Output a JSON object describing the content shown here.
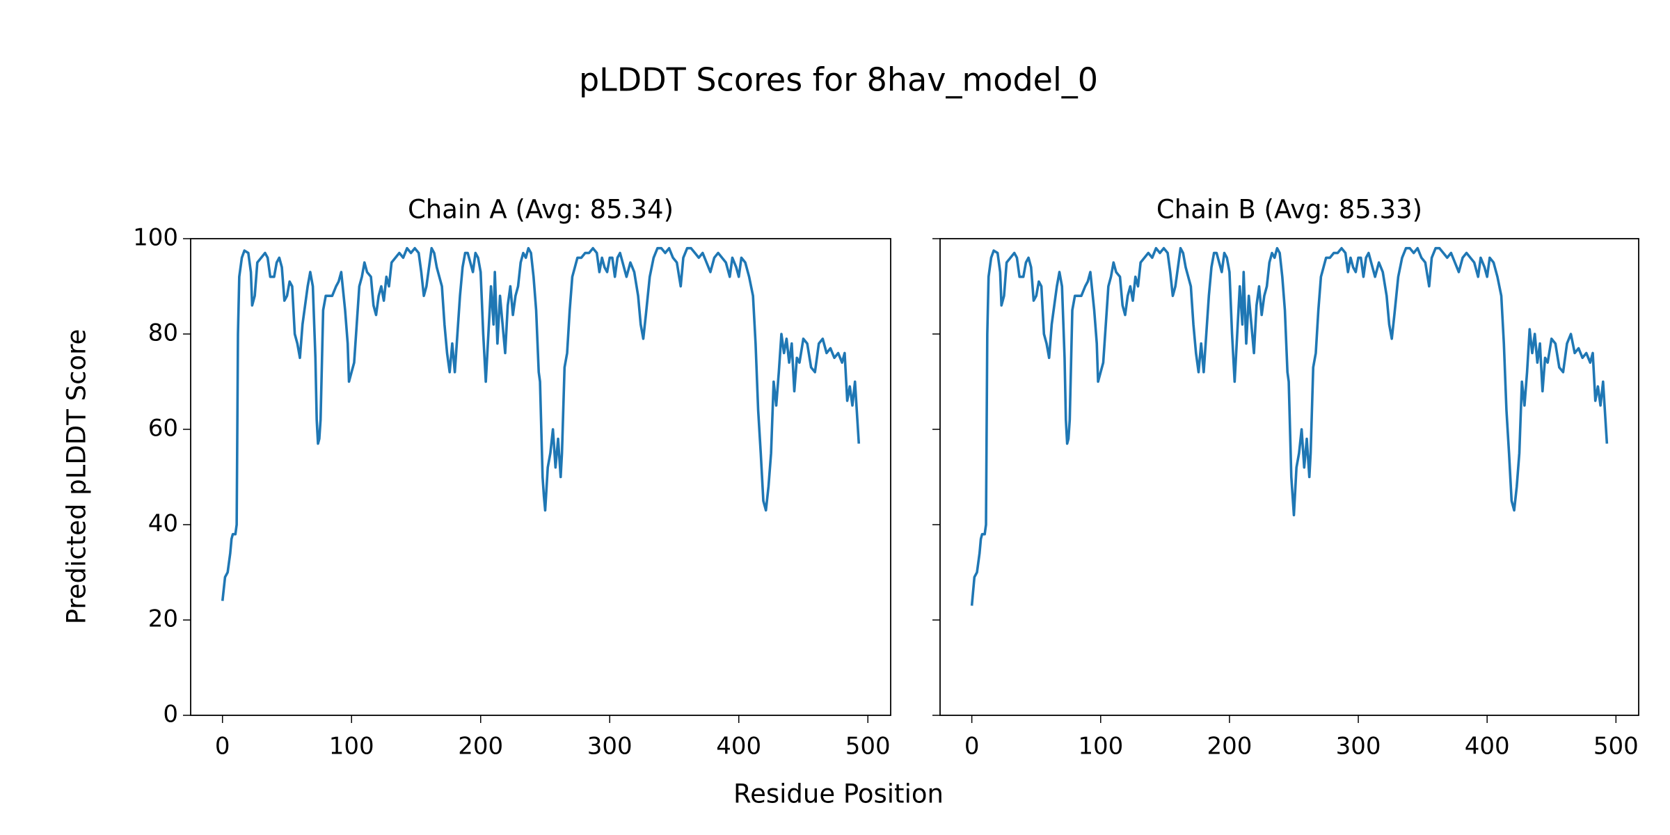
{
  "title": "pLDDT Scores for 8hav_model_0",
  "xlabel": "Residue Position",
  "ylabel": "Predicted pLDDT Score",
  "chart_data": [
    {
      "type": "line",
      "title": "Chain A (Avg: 85.34)",
      "color": "#1f77b4",
      "xlim": [
        -24.65,
        517.65
      ],
      "ylim": [
        0,
        100
      ],
      "xticks": [
        0,
        100,
        200,
        300,
        400,
        500
      ],
      "yticks": [
        0,
        20,
        40,
        60,
        80,
        100
      ],
      "x": [
        0,
        2,
        4,
        6,
        7,
        8,
        10,
        11,
        12,
        13,
        15,
        17,
        20,
        22,
        23,
        25,
        27,
        30,
        33,
        35,
        37,
        40,
        42,
        44,
        46,
        48,
        50,
        52,
        54,
        56,
        58,
        60,
        62,
        64,
        66,
        68,
        70,
        72,
        73,
        74,
        75,
        76,
        78,
        80,
        85,
        88,
        90,
        92,
        95,
        97,
        98,
        100,
        102,
        104,
        106,
        108,
        110,
        112,
        115,
        117,
        119,
        121,
        123,
        125,
        127,
        129,
        131,
        134,
        137,
        140,
        143,
        146,
        149,
        152,
        154,
        156,
        158,
        160,
        162,
        164,
        166,
        168,
        170,
        172,
        174,
        176,
        178,
        180,
        182,
        184,
        186,
        188,
        190,
        192,
        194,
        196,
        198,
        200,
        202,
        204,
        206,
        208,
        210,
        211,
        213,
        215,
        217,
        219,
        221,
        223,
        225,
        227,
        229,
        231,
        233,
        235,
        237,
        239,
        241,
        243,
        245,
        246,
        248,
        249,
        250,
        252,
        254,
        256,
        258,
        260,
        262,
        263,
        265,
        267,
        269,
        271,
        273,
        275,
        278,
        281,
        284,
        287,
        290,
        292,
        294,
        296,
        298,
        300,
        302,
        304,
        306,
        308,
        310,
        313,
        316,
        319,
        322,
        324,
        326,
        328,
        331,
        334,
        337,
        340,
        343,
        346,
        349,
        352,
        355,
        357,
        360,
        363,
        366,
        369,
        372,
        375,
        378,
        381,
        384,
        387,
        390,
        393,
        395,
        398,
        400,
        402,
        405,
        408,
        411,
        413,
        415,
        417,
        419,
        421,
        423,
        425,
        427,
        429,
        431,
        433,
        435,
        437,
        439,
        441,
        443,
        445,
        447,
        450,
        453,
        456,
        459,
        462,
        465,
        468,
        471,
        474,
        477,
        480,
        482,
        484,
        486,
        488,
        490,
        493
      ],
      "values": [
        24,
        29,
        30,
        34,
        37,
        38,
        38,
        40,
        80,
        92,
        96,
        97.5,
        97,
        93,
        86,
        88,
        95,
        96,
        97,
        96,
        92,
        92,
        95,
        96,
        94,
        87,
        88,
        91,
        90,
        80,
        78,
        75,
        82,
        86,
        90,
        93,
        90,
        75,
        62,
        57,
        58,
        62,
        85,
        88,
        88,
        90,
        91,
        93,
        85,
        78,
        70,
        72,
        74,
        82,
        90,
        92,
        95,
        93,
        92,
        86,
        84,
        88,
        90,
        87,
        92,
        90,
        95,
        96,
        97,
        96,
        98,
        97,
        98,
        97,
        93,
        88,
        90,
        94,
        98,
        97,
        94,
        92,
        90,
        82,
        76,
        72,
        78,
        72,
        80,
        88,
        94,
        97,
        97,
        95,
        93,
        97,
        96,
        93,
        80,
        70,
        80,
        90,
        82,
        93,
        78,
        88,
        82,
        76,
        86,
        90,
        84,
        88,
        90,
        95,
        97,
        96,
        98,
        97,
        92,
        85,
        72,
        70,
        50,
        46,
        43,
        52,
        55,
        60,
        52,
        58,
        50,
        55,
        73,
        76,
        85,
        92,
        94,
        96,
        96,
        97,
        97,
        98,
        97,
        93,
        96,
        94,
        93,
        96,
        96,
        92,
        96,
        97,
        95,
        92,
        95,
        93,
        88,
        82,
        79,
        84,
        92,
        96,
        98,
        98,
        97,
        98,
        96,
        95,
        90,
        96,
        98,
        98,
        97,
        96,
        97,
        95,
        93,
        96,
        97,
        96,
        95,
        92,
        96,
        94,
        92,
        96,
        95,
        92,
        88,
        78,
        64,
        55,
        45,
        43,
        48,
        55,
        70,
        65,
        72,
        80,
        76,
        79,
        74,
        78,
        68,
        75,
        74,
        79,
        78,
        73,
        72,
        78,
        79,
        76,
        77,
        75,
        76,
        74,
        76,
        66,
        69,
        65,
        70,
        57
      ]
    },
    {
      "type": "line",
      "title": "Chain B (Avg: 85.33)",
      "color": "#1f77b4",
      "xlim": [
        -24.65,
        517.65
      ],
      "ylim": [
        0,
        100
      ],
      "xticks": [
        0,
        100,
        200,
        300,
        400,
        500
      ],
      "yticks": [
        0,
        20,
        40,
        60,
        80,
        100
      ],
      "x": [
        0,
        2,
        4,
        6,
        7,
        8,
        10,
        11,
        12,
        13,
        15,
        17,
        20,
        22,
        23,
        25,
        27,
        30,
        33,
        35,
        37,
        40,
        42,
        44,
        46,
        48,
        50,
        52,
        54,
        56,
        58,
        60,
        62,
        64,
        66,
        68,
        70,
        72,
        73,
        74,
        75,
        76,
        78,
        80,
        85,
        88,
        90,
        92,
        95,
        97,
        98,
        100,
        102,
        104,
        106,
        108,
        110,
        112,
        115,
        117,
        119,
        121,
        123,
        125,
        127,
        129,
        131,
        134,
        137,
        140,
        143,
        146,
        149,
        152,
        154,
        156,
        158,
        160,
        162,
        164,
        166,
        168,
        170,
        172,
        174,
        176,
        178,
        180,
        182,
        184,
        186,
        188,
        190,
        192,
        194,
        196,
        198,
        200,
        202,
        204,
        206,
        208,
        210,
        211,
        213,
        215,
        217,
        219,
        221,
        223,
        225,
        227,
        229,
        231,
        233,
        235,
        237,
        239,
        241,
        243,
        245,
        246,
        248,
        249,
        250,
        252,
        254,
        256,
        258,
        260,
        262,
        263,
        265,
        267,
        269,
        271,
        273,
        275,
        278,
        281,
        284,
        287,
        290,
        292,
        294,
        296,
        298,
        300,
        302,
        304,
        306,
        308,
        310,
        313,
        316,
        319,
        322,
        324,
        326,
        328,
        331,
        334,
        337,
        340,
        343,
        346,
        349,
        352,
        355,
        357,
        360,
        363,
        366,
        369,
        372,
        375,
        378,
        381,
        384,
        387,
        390,
        393,
        395,
        398,
        400,
        402,
        405,
        408,
        411,
        413,
        415,
        417,
        419,
        421,
        423,
        425,
        427,
        429,
        431,
        433,
        435,
        437,
        439,
        441,
        443,
        445,
        447,
        450,
        453,
        456,
        459,
        462,
        465,
        468,
        471,
        474,
        477,
        480,
        482,
        484,
        486,
        488,
        490,
        493
      ],
      "values": [
        23,
        29,
        30,
        34,
        37,
        38,
        38,
        40,
        80,
        92,
        96,
        97.5,
        97,
        93,
        86,
        88,
        95,
        96,
        97,
        96,
        92,
        92,
        95,
        96,
        94,
        87,
        88,
        91,
        90,
        80,
        78,
        75,
        82,
        86,
        90,
        93,
        90,
        75,
        62,
        57,
        58,
        62,
        85,
        88,
        88,
        90,
        91,
        93,
        85,
        78,
        70,
        72,
        74,
        82,
        90,
        92,
        95,
        93,
        92,
        86,
        84,
        88,
        90,
        87,
        92,
        90,
        95,
        96,
        97,
        96,
        98,
        97,
        98,
        97,
        93,
        88,
        90,
        94,
        98,
        97,
        94,
        92,
        90,
        82,
        76,
        72,
        78,
        72,
        80,
        88,
        94,
        97,
        97,
        95,
        93,
        97,
        96,
        93,
        80,
        70,
        80,
        90,
        82,
        93,
        78,
        88,
        82,
        76,
        86,
        90,
        84,
        88,
        90,
        95,
        97,
        96,
        98,
        97,
        92,
        85,
        72,
        70,
        50,
        46,
        42,
        52,
        55,
        60,
        52,
        58,
        50,
        55,
        73,
        76,
        85,
        92,
        94,
        96,
        96,
        97,
        97,
        98,
        97,
        93,
        96,
        94,
        93,
        96,
        96,
        92,
        96,
        97,
        95,
        92,
        95,
        93,
        88,
        82,
        79,
        84,
        92,
        96,
        98,
        98,
        97,
        98,
        96,
        95,
        90,
        96,
        98,
        98,
        97,
        96,
        97,
        95,
        93,
        96,
        97,
        96,
        95,
        92,
        96,
        94,
        92,
        96,
        95,
        92,
        88,
        78,
        64,
        55,
        45,
        43,
        48,
        55,
        70,
        65,
        72,
        81,
        76,
        80,
        74,
        78,
        68,
        75,
        74,
        79,
        78,
        73,
        72,
        78,
        80,
        76,
        77,
        75,
        76,
        74,
        76,
        66,
        69,
        65,
        70,
        57
      ]
    }
  ]
}
